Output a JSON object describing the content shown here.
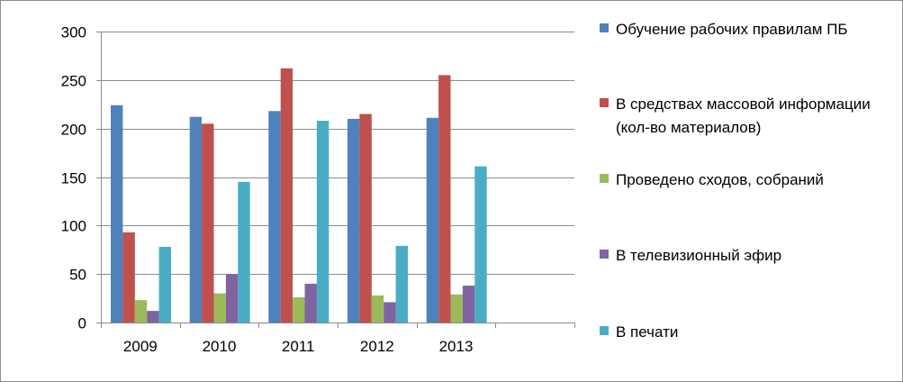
{
  "chart_data": {
    "type": "bar",
    "categories": [
      "2009",
      "2010",
      "2011",
      "2012",
      "2013",
      ""
    ],
    "y_ticks": [
      "0",
      "50",
      "100",
      "150",
      "200",
      "250",
      "300"
    ],
    "ylim": [
      0,
      300
    ],
    "grid": true,
    "legend_position": "right",
    "series": [
      {
        "name": "Обучение рабочих правилам ПБ",
        "color": "#4f81bd",
        "values": [
          224,
          212,
          218,
          210,
          211,
          null
        ]
      },
      {
        "name": "В средствах массовой информации (кол-во материалов)",
        "color": "#c0504d",
        "values": [
          93,
          205,
          262,
          215,
          255,
          null
        ]
      },
      {
        "name": "Проведено сходов, собраний",
        "color": "#9bbb59",
        "values": [
          23,
          30,
          26,
          28,
          29,
          null
        ]
      },
      {
        "name": "В телевизионный эфир",
        "color": "#8064a2",
        "values": [
          12,
          50,
          40,
          21,
          38,
          null
        ]
      },
      {
        "name": "В печати",
        "color": "#4bacc6",
        "values": [
          78,
          145,
          208,
          79,
          161,
          null
        ]
      }
    ]
  }
}
